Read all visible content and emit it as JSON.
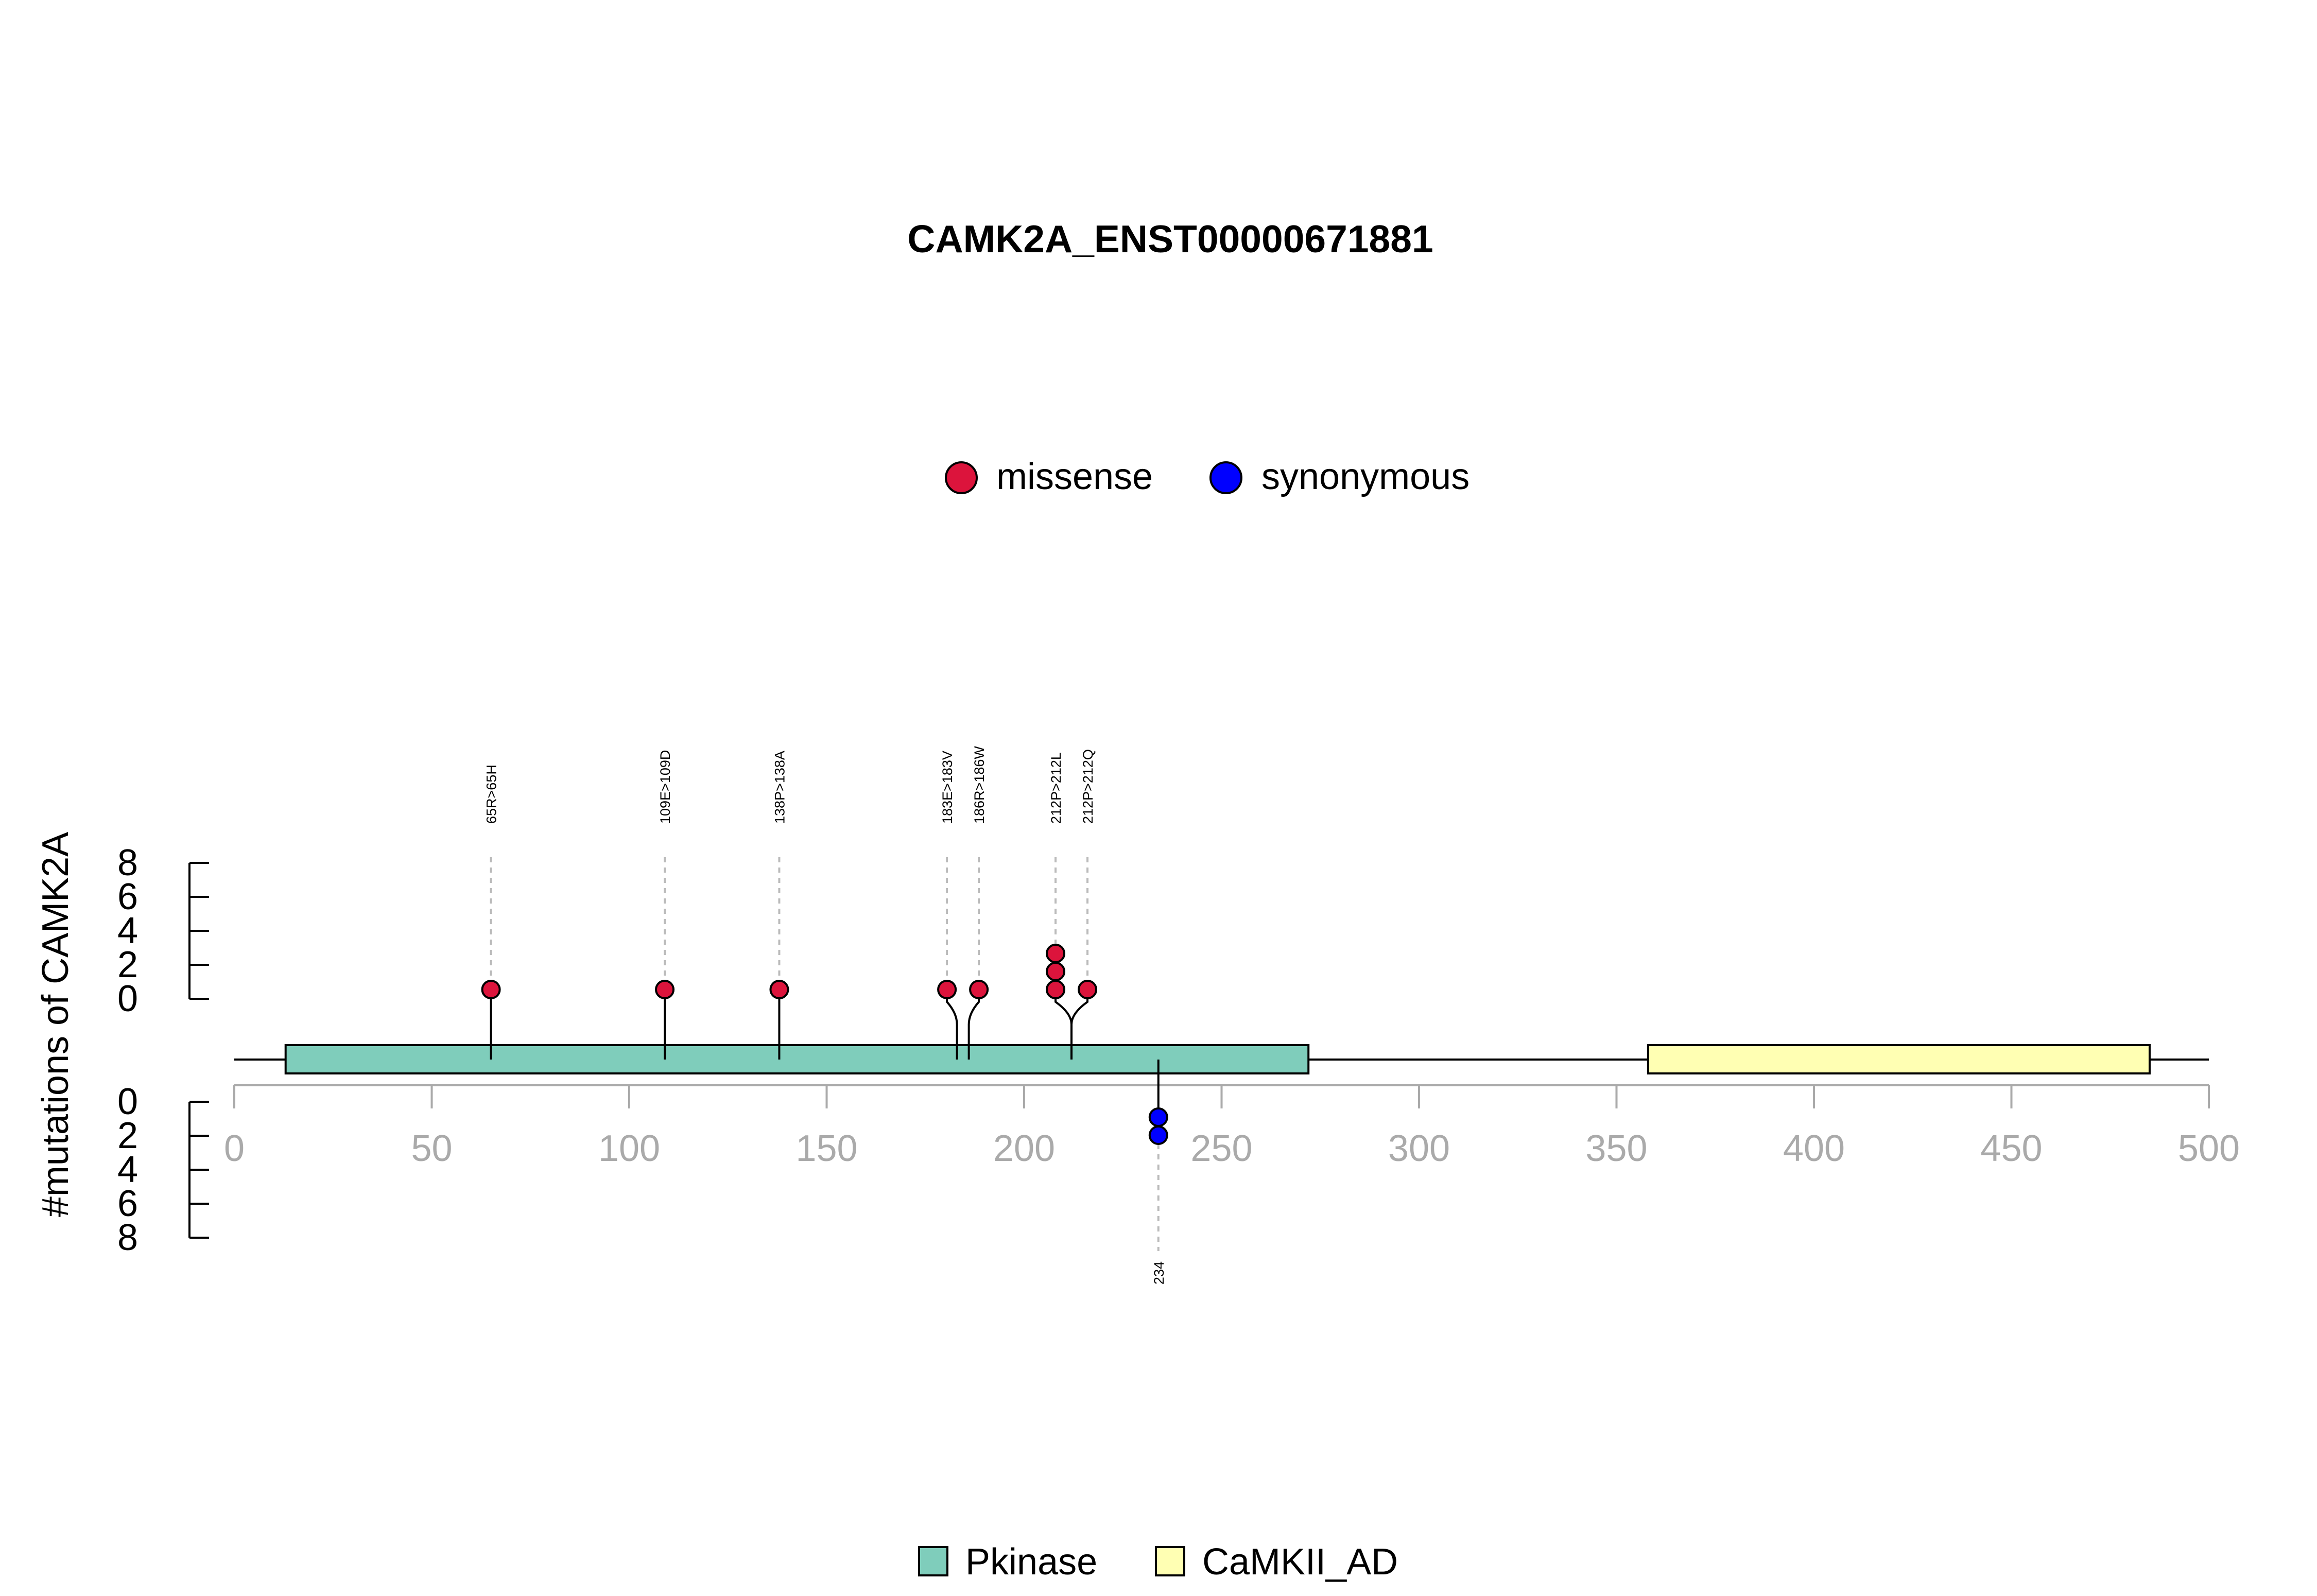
{
  "chart_data": {
    "type": "lollipop",
    "title": "CAMK2A_ENST00000671881",
    "ylabel": "#mutations of CAMK2A",
    "xlim": [
      0,
      500
    ],
    "x_ticks": [
      0,
      50,
      100,
      150,
      200,
      250,
      300,
      350,
      400,
      450,
      500
    ],
    "y_ticks": [
      0,
      2,
      4,
      6,
      8
    ],
    "colors": {
      "missense": "#dc143c",
      "synonymous": "#0000ff",
      "Pkinase": "#7fcdbb",
      "CaMKII_AD": "#ffffb3"
    },
    "mutation_legend": [
      {
        "name": "missense",
        "color": "#dc143c"
      },
      {
        "name": "synonymous",
        "color": "#0000ff"
      }
    ],
    "domain_legend": [
      {
        "name": "Pkinase",
        "color": "#7fcdbb"
      },
      {
        "name": "CaMKII_AD",
        "color": "#ffffb3"
      }
    ],
    "domains": [
      {
        "name": "Pkinase",
        "start": 13,
        "end": 272
      },
      {
        "name": "CaMKII_AD",
        "start": 358,
        "end": 485
      }
    ],
    "mutations_top": [
      {
        "label": "65R>65H",
        "position": 65,
        "count": 1,
        "type": "missense"
      },
      {
        "label": "109E>109D",
        "position": 109,
        "count": 1,
        "type": "missense"
      },
      {
        "label": "138P>138A",
        "position": 138,
        "count": 1,
        "type": "missense"
      },
      {
        "label": "183E>183V",
        "position": 183,
        "count": 1,
        "type": "missense"
      },
      {
        "label": "186R>186W",
        "position": 186,
        "count": 1,
        "type": "missense"
      },
      {
        "label": "212P>212L",
        "position": 212,
        "count": 3,
        "type": "missense"
      },
      {
        "label": "212P>212Q",
        "position": 212,
        "count": 1,
        "type": "missense"
      }
    ],
    "mutations_bottom": [
      {
        "label": "234",
        "position": 234,
        "count": 2,
        "type": "synonymous"
      }
    ]
  }
}
